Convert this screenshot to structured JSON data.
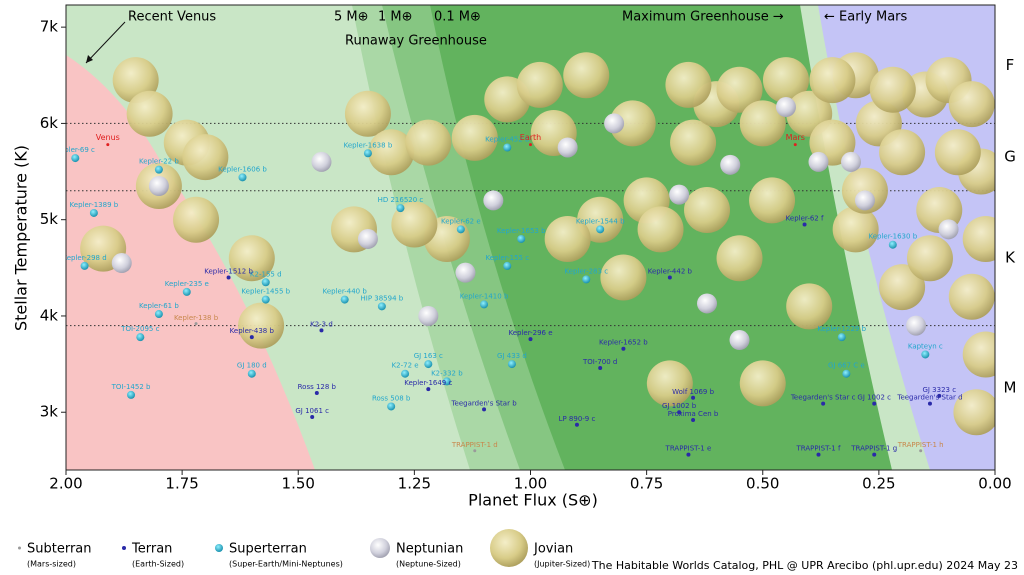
{
  "chart_data": {
    "type": "scatter",
    "xlabel": "Planet Flux (S⊕)",
    "ylabel": "Stellar Temperature (K)",
    "xlim": [
      2,
      0
    ],
    "ylim": [
      2400,
      7230
    ],
    "xticks": [
      {
        "value": 2,
        "label": "2.00"
      },
      {
        "value": 1.75,
        "label": "1.75"
      },
      {
        "value": 1.5,
        "label": "1.50"
      },
      {
        "value": 1.25,
        "label": "1.25"
      },
      {
        "value": 1,
        "label": "1.00"
      },
      {
        "value": 0.75,
        "label": "0.75"
      },
      {
        "value": 0.5,
        "label": "0.50"
      },
      {
        "value": 0.25,
        "label": "0.25"
      },
      {
        "value": 0,
        "label": "0.00"
      }
    ],
    "yticks": [
      {
        "value": 3000,
        "label": "3k"
      },
      {
        "value": 4000,
        "label": "4k"
      },
      {
        "value": 5000,
        "label": "5k"
      },
      {
        "value": 6000,
        "label": "6k"
      },
      {
        "value": 7000,
        "label": "7k"
      }
    ],
    "class_boundaries": [
      6000,
      5300,
      3900
    ],
    "spectral_classes": [
      {
        "label": "F",
        "value": 6600
      },
      {
        "label": "G",
        "value": 5650
      },
      {
        "label": "K",
        "value": 4600
      },
      {
        "label": "M",
        "value": 3250
      }
    ],
    "zones": {
      "recent_venus": "Recent Venus",
      "mass_5": "5 M⊕",
      "mass_1": "1 M⊕",
      "mass_01": "0.1 M⊕",
      "runaway": "Runaway Greenhouse",
      "max_greenhouse": "Maximum Greenhouse →",
      "early_mars": "← Early Mars"
    },
    "solar_system": {
      "color": "#e02020",
      "labels": [
        "Venus",
        "Earth",
        "Mars"
      ],
      "x": [
        1.91,
        1.0,
        0.43
      ],
      "values": [
        5780,
        5780,
        5780
      ]
    },
    "series": [
      {
        "name": "Subterran",
        "description": "(Mars-sized)",
        "color": "#b0a890",
        "labels": [
          "TRAPPIST-1 d",
          "TRAPPIST-1 h",
          "Kepler-138 b"
        ],
        "x": [
          1.12,
          0.16,
          1.72
        ],
        "values": [
          2600,
          2600,
          3920
        ]
      },
      {
        "name": "Terran",
        "description": "(Earth-Sized)",
        "color": "#2a2aa8",
        "labels": [
          "Kepler-1512 b",
          "Kepler-438 b",
          "K2-3 d",
          "Ross 128 b",
          "GJ 1061 c",
          "Kepler-1649 c",
          "Teegarden's Star b",
          "TOI-700 d",
          "Kepler-296 e",
          "Kepler-1652 b",
          "Kepler-442 b",
          "Wolf 1069 b",
          "Proxima Cen b",
          "TRAPPIST-1 e",
          "TRAPPIST-1 f",
          "TRAPPIST-1 g",
          "Teegarden's Star c",
          "GJ 1002 c",
          "Kepler-62 f",
          "GJ 3323 c",
          "Teegarden's Star d",
          "LP 890-9 c",
          "GJ 1002 b"
        ],
        "x": [
          1.65,
          1.6,
          1.45,
          1.46,
          1.47,
          1.22,
          1.1,
          0.85,
          1.0,
          0.8,
          0.7,
          0.65,
          0.65,
          0.66,
          0.38,
          0.26,
          0.37,
          0.26,
          0.41,
          0.12,
          0.14,
          0.9,
          0.68
        ],
        "values": [
          4400,
          3780,
          3850,
          3200,
          2950,
          3240,
          3030,
          3460,
          3760,
          3660,
          4400,
          3150,
          2920,
          2560,
          2560,
          2560,
          3090,
          3090,
          4950,
          3170,
          3090,
          2870,
          3000
        ]
      },
      {
        "name": "Superterran",
        "description": "(Super-Earth/Mini-Neptunes)",
        "color": "#22a6cc",
        "labels": [
          "Kepler-69 c",
          "Kepler-1389 b",
          "Kepler-1606 b",
          "Kepler-22 b",
          "Kepler-1638 b",
          "Kepler-452 b",
          "HD 216520 c",
          "Kepler-62 e",
          "Kepler-1653 b",
          "Kepler-155 c",
          "Kepler-1410 b",
          "HIP 38594 b",
          "Kepler-440 b",
          "Kepler-1455 b",
          "Kepler-61 b",
          "Kepler-283 c",
          "Kepler-1544 b",
          "Kepler-1229 b",
          "Kepler-1630 b",
          "Kepler-298 d",
          "TOI-2095 c",
          "GJ 180 d",
          "GJ 163 c",
          "GJ 433 d",
          "GJ 667 C e",
          "Kapteyn c",
          "K2-72 e",
          "Ross 508 b",
          "K2-332 b",
          "TOI-1452 b",
          "K2-155 d",
          "Kepler-235 e"
        ],
        "x": [
          1.98,
          1.94,
          1.62,
          1.8,
          1.35,
          1.05,
          1.28,
          1.15,
          1.02,
          1.05,
          1.1,
          1.32,
          1.4,
          1.57,
          1.8,
          0.88,
          0.85,
          0.33,
          0.22,
          1.96,
          1.84,
          1.6,
          1.22,
          1.04,
          0.32,
          0.15,
          1.27,
          1.3,
          1.18,
          1.86,
          1.57,
          1.74
        ],
        "values": [
          5640,
          5070,
          5440,
          5520,
          5690,
          5750,
          5120,
          4900,
          4800,
          4520,
          4120,
          4100,
          4170,
          4170,
          4020,
          4380,
          4900,
          3780,
          4740,
          4520,
          3780,
          3400,
          3500,
          3500,
          3400,
          3600,
          3400,
          3060,
          3320,
          3180,
          4350,
          4250
        ]
      },
      {
        "name": "Neptunian",
        "description": "(Neptune-Sized)",
        "color": "#c8c8d8",
        "x": [
          1.88,
          1.8,
          1.45,
          1.35,
          1.14,
          1.08,
          0.92,
          0.82,
          0.68,
          0.57,
          0.45,
          0.38,
          0.31,
          0.28,
          0.55,
          0.17,
          1.22,
          0.62,
          0.1
        ],
        "values": [
          4550,
          5350,
          5600,
          4800,
          4450,
          5200,
          5750,
          6000,
          5260,
          5570,
          6170,
          5600,
          5600,
          5200,
          3750,
          3900,
          4000,
          4130,
          4900
        ]
      },
      {
        "name": "Jovian",
        "description": "(Jupiter-Sized)",
        "color": "#d8cc88",
        "x": [
          1.85,
          1.82,
          1.74,
          1.7,
          1.8,
          1.72,
          1.6,
          1.58,
          1.92,
          1.35,
          1.3,
          1.22,
          1.18,
          1.25,
          1.12,
          1.05,
          0.98,
          0.88,
          0.95,
          0.78,
          0.85,
          0.75,
          0.65,
          0.6,
          0.55,
          0.5,
          0.45,
          0.4,
          0.35,
          0.3,
          0.25,
          0.2,
          0.15,
          0.1,
          0.05,
          0.03,
          0.02,
          0.05,
          0.02,
          0.04,
          0.7,
          0.5,
          0.4,
          0.3,
          0.2,
          0.92,
          0.62,
          0.48,
          0.72,
          1.38,
          0.28,
          0.12,
          0.55,
          0.8,
          0.66,
          0.35,
          0.22,
          0.08,
          0.14
        ],
        "values": [
          6450,
          6100,
          5800,
          5650,
          5350,
          5000,
          4600,
          3900,
          4700,
          6100,
          5700,
          5800,
          4800,
          4950,
          5850,
          6250,
          6400,
          6500,
          5900,
          6000,
          5000,
          5200,
          5800,
          6200,
          6350,
          6000,
          6450,
          6100,
          5800,
          6500,
          6000,
          5700,
          6300,
          6450,
          6200,
          5500,
          4800,
          4200,
          3600,
          3000,
          3300,
          3300,
          4100,
          4900,
          4300,
          4800,
          5100,
          5200,
          4900,
          4900,
          5300,
          5100,
          4600,
          4400,
          6400,
          6450,
          6350,
          5700,
          4600
        ]
      }
    ],
    "credit": "The Habitable Worlds Catalog, PHL @ UPR Arecibo (phl.upr.edu) 2024 May 23"
  }
}
